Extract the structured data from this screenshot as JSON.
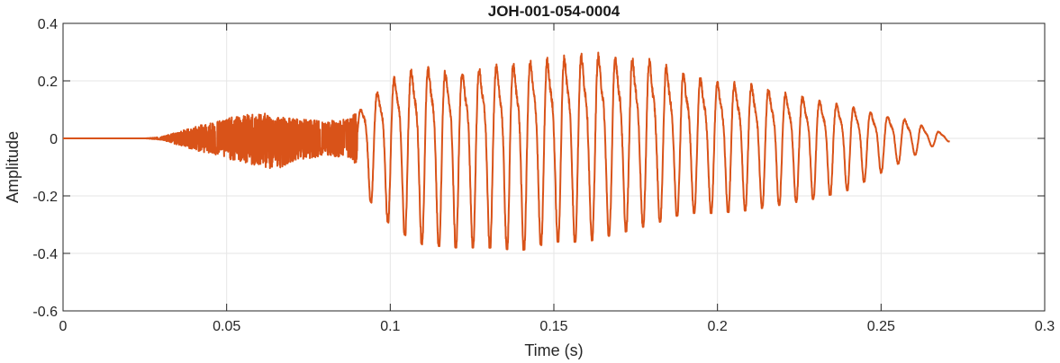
{
  "chart_data": {
    "type": "line",
    "title": "JOH-001-054-0004",
    "xlabel": "Time (s)",
    "ylabel": "Amplitude",
    "xlim": [
      0,
      0.3
    ],
    "ylim": [
      -0.6,
      0.4
    ],
    "x_ticks": [
      0,
      0.05,
      0.1,
      0.15,
      0.2,
      0.25,
      0.3
    ],
    "x_tick_labels": [
      "0",
      "0.05",
      "0.1",
      "0.15",
      "0.2",
      "0.25",
      "0.3"
    ],
    "y_ticks": [
      -0.6,
      -0.4,
      -0.2,
      0,
      0.2,
      0.4
    ],
    "y_tick_labels": [
      "-0.6",
      "-0.4",
      "-0.2",
      "0",
      "0.2",
      "0.4"
    ],
    "grid": true,
    "line_color": "#D95319",
    "series": [
      {
        "x_start": 0,
        "x_end": 0.271,
        "envelope": {
          "t": [
            0,
            0.025,
            0.03,
            0.04,
            0.05,
            0.06,
            0.065,
            0.07,
            0.08,
            0.088,
            0.09,
            0.092,
            0.095,
            0.1,
            0.105,
            0.11,
            0.12,
            0.13,
            0.14,
            0.15,
            0.16,
            0.17,
            0.18,
            0.19,
            0.2,
            0.21,
            0.22,
            0.23,
            0.24,
            0.25,
            0.26,
            0.265,
            0.271
          ],
          "upper": [
            0,
            0,
            0.005,
            0.04,
            0.07,
            0.09,
            0.08,
            0.07,
            0.06,
            0.07,
            0.1,
            0.18,
            0.2,
            0.27,
            0.31,
            0.33,
            0.3,
            0.33,
            0.35,
            0.37,
            0.39,
            0.38,
            0.36,
            0.3,
            0.26,
            0.25,
            0.21,
            0.18,
            0.15,
            0.11,
            0.08,
            0.04,
            0.02
          ],
          "lower": [
            0,
            0,
            -0.005,
            -0.04,
            -0.07,
            -0.1,
            -0.11,
            -0.08,
            -0.06,
            -0.07,
            -0.1,
            -0.18,
            -0.24,
            -0.3,
            -0.34,
            -0.37,
            -0.38,
            -0.38,
            -0.39,
            -0.36,
            -0.36,
            -0.33,
            -0.3,
            -0.26,
            -0.26,
            -0.25,
            -0.23,
            -0.21,
            -0.18,
            -0.12,
            -0.06,
            -0.03,
            -0.01
          ]
        },
        "noise_until": 0.09,
        "voiced_from": 0.09,
        "voiced_period": 0.0052
      }
    ]
  }
}
